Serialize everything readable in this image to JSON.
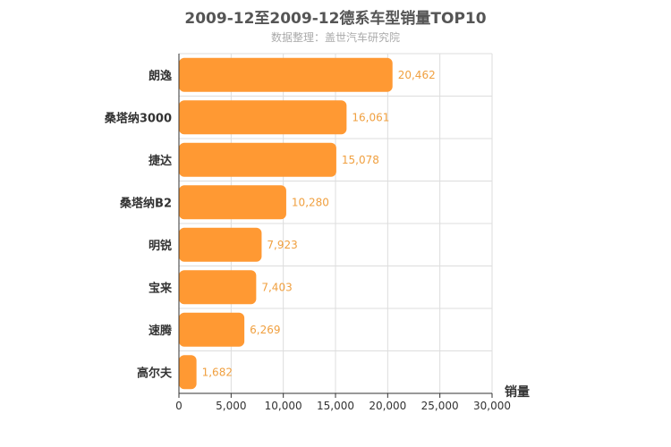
{
  "chart_data": {
    "type": "bar",
    "orientation": "horizontal",
    "title": "2009-12至2009-12德系车型销量TOP10",
    "subtitle": "数据整理：盖世汽车研究院",
    "categories": [
      "朗逸",
      "桑塔纳3000",
      "捷达",
      "桑塔纳B2",
      "明锐",
      "宝来",
      "速腾",
      "高尔夫"
    ],
    "values": [
      20462,
      16061,
      15078,
      10280,
      7923,
      7403,
      6269,
      1682
    ],
    "value_labels": [
      "20,462",
      "16,061",
      "15,078",
      "10,280",
      "7,923",
      "7,403",
      "6,269",
      "1,682"
    ],
    "xlabel": "销量",
    "ylabel": "",
    "xlim": [
      0,
      30000
    ],
    "x_ticks": [
      0,
      5000,
      10000,
      15000,
      20000,
      25000,
      30000
    ],
    "x_tick_labels": [
      "0",
      "5,000",
      "10,000",
      "15,000",
      "20,000",
      "25,000",
      "30,000"
    ],
    "grid": true,
    "legend": "none",
    "colors": {
      "bar": "#ff9933",
      "value_label": "#f0a040",
      "grid": "#dddddd",
      "axis": "#333333",
      "text": "#333333"
    }
  }
}
